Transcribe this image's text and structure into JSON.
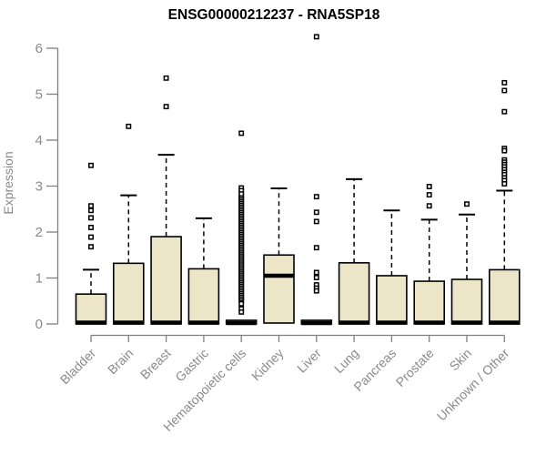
{
  "chart_data": {
    "type": "boxplot",
    "title": "ENSG00000212237 - RNA5SP18",
    "ylabel": "Expression",
    "xlabel": "",
    "ylim": [
      0,
      6.4
    ],
    "yticks": [
      0,
      1,
      2,
      3,
      4,
      5,
      6
    ],
    "grid": false,
    "legend": false,
    "colors": {
      "box_fill": "#EDE5C7",
      "box_stroke": "#000000",
      "median": "#000000",
      "whisker": "#000000",
      "outlier_stroke": "#000000",
      "axis": "#808080",
      "tick_text": "#8a8a8a",
      "title_text": "#000000"
    },
    "categories": [
      "Bladder",
      "Brain",
      "Breast",
      "Gastric",
      "Hematopoietic cells",
      "Kidney",
      "Liver",
      "Lung",
      "Pancreas",
      "Prostate",
      "Skin",
      "Unknown / Other"
    ],
    "series": [
      {
        "name": "Bladder",
        "q1": 0,
        "median": 0.03,
        "q3": 0.65,
        "whisker_low": 0,
        "whisker_high": 1.18,
        "outliers": [
          3.45,
          2.57,
          2.47,
          2.31,
          2.1,
          1.89,
          1.68
        ],
        "outlier_ranges": []
      },
      {
        "name": "Brain",
        "q1": 0,
        "median": 0.03,
        "q3": 1.32,
        "whisker_low": 0,
        "whisker_high": 2.8,
        "outliers": [
          4.3
        ],
        "outlier_ranges": []
      },
      {
        "name": "Breast",
        "q1": 0,
        "median": 0.03,
        "q3": 1.9,
        "whisker_low": 0,
        "whisker_high": 3.68,
        "outliers": [
          5.35,
          4.73
        ],
        "outlier_ranges": []
      },
      {
        "name": "Gastric",
        "q1": 0,
        "median": 0.03,
        "q3": 1.2,
        "whisker_low": 0,
        "whisker_high": 2.3,
        "outliers": [],
        "outlier_ranges": []
      },
      {
        "name": "Hematopoietic cells",
        "q1": 0,
        "median": 0.02,
        "q3": 0.08,
        "whisker_low": 0,
        "whisker_high": 0.08,
        "outliers": [
          4.15,
          2.96,
          2.9,
          0.5,
          0.44,
          0.33,
          0.26
        ],
        "outlier_ranges": [
          [
            0.55,
            2.86,
            0.04
          ]
        ]
      },
      {
        "name": "Kidney",
        "q1": 0.02,
        "median": 1.05,
        "q3": 1.5,
        "whisker_low": 0.02,
        "whisker_high": 2.95,
        "outliers": [],
        "outlier_ranges": []
      },
      {
        "name": "Liver",
        "q1": 0,
        "median": 0.02,
        "q3": 0.08,
        "whisker_low": 0,
        "whisker_high": 0.08,
        "outliers": [
          6.25,
          2.77,
          2.43,
          2.23,
          1.66,
          1.12,
          1.01,
          0.85,
          0.78,
          0.72
        ],
        "outlier_ranges": []
      },
      {
        "name": "Lung",
        "q1": 0,
        "median": 0.03,
        "q3": 1.33,
        "whisker_low": 0,
        "whisker_high": 3.15,
        "outliers": [],
        "outlier_ranges": []
      },
      {
        "name": "Pancreas",
        "q1": 0,
        "median": 0.03,
        "q3": 1.05,
        "whisker_low": 0,
        "whisker_high": 2.47,
        "outliers": [],
        "outlier_ranges": []
      },
      {
        "name": "Prostate",
        "q1": 0,
        "median": 0.03,
        "q3": 0.93,
        "whisker_low": 0,
        "whisker_high": 2.27,
        "outliers": [
          2.99,
          2.81,
          2.57
        ],
        "outlier_ranges": []
      },
      {
        "name": "Skin",
        "q1": 0,
        "median": 0.03,
        "q3": 0.97,
        "whisker_low": 0,
        "whisker_high": 2.38,
        "outliers": [
          2.61
        ],
        "outlier_ranges": []
      },
      {
        "name": "Unknown / Other",
        "q1": 0,
        "median": 0.03,
        "q3": 1.18,
        "whisker_low": 0,
        "whisker_high": 2.9,
        "outliers": [
          5.25,
          5.08,
          4.62,
          3.82,
          3.77,
          3.57,
          3.52,
          3.47,
          3.42,
          3.36,
          3.3,
          3.25,
          3.18,
          3.12,
          3.05
        ],
        "outlier_ranges": []
      }
    ]
  }
}
